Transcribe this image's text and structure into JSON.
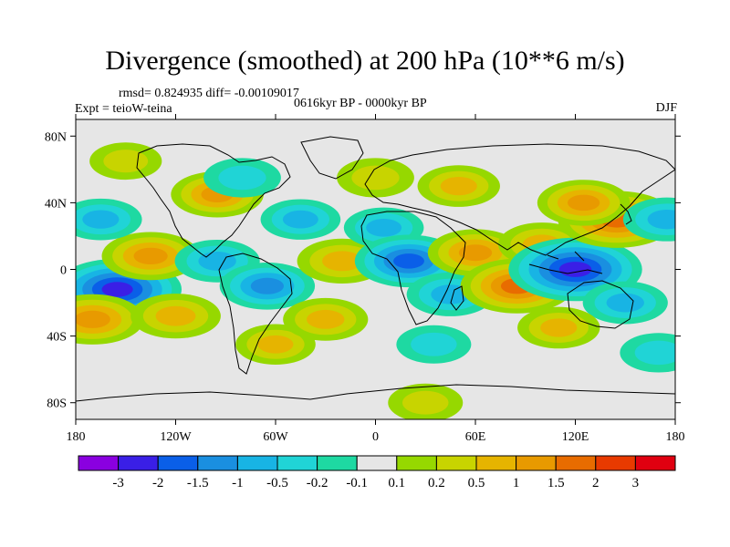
{
  "title": "Divergence (smoothed) at 200 hPa (10**6 m/s)",
  "stats": "rmsd= 0.824935 diff= -0.00109017",
  "experiment": "Expt = teioW-teina",
  "period": "0616kyr BP - 0000kyr BP",
  "season": "DJF",
  "lat_ticks": [
    "80N",
    "40N",
    "0",
    "40S",
    "80S"
  ],
  "lat_values": [
    80,
    40,
    0,
    -40,
    -80
  ],
  "lon_ticks": [
    "180",
    "120W",
    "60W",
    "0",
    "60E",
    "120E",
    "180"
  ],
  "lon_values": [
    -180,
    -120,
    -60,
    0,
    60,
    120,
    180
  ],
  "colorbar": {
    "labels": [
      "-3",
      "-2",
      "-1.5",
      "-1",
      "-0.5",
      "-0.2",
      "-0.1",
      "0.1",
      "0.2",
      "0.5",
      "1",
      "1.5",
      "2",
      "3"
    ],
    "levels": [
      -3,
      -2,
      -1.5,
      -1,
      -0.5,
      -0.2,
      -0.1,
      0.1,
      0.2,
      0.5,
      1,
      1.5,
      2,
      3
    ],
    "colors": [
      "#8a00e0",
      "#3a1fe6",
      "#0a5fe8",
      "#1a8fe0",
      "#18b4e4",
      "#20d4d6",
      "#1ed9a2",
      "#e6e6e6",
      "#96d800",
      "#c8d400",
      "#e6b400",
      "#e89a00",
      "#e86c00",
      "#e83a00",
      "#e00010"
    ]
  },
  "field_anomalies": [
    {
      "lon": -155,
      "lat": -12,
      "value": -2.6
    },
    {
      "lon": -135,
      "lat": 8,
      "value": 1.4
    },
    {
      "lon": -165,
      "lat": 30,
      "value": -0.8
    },
    {
      "lon": -170,
      "lat": -30,
      "value": 1.6
    },
    {
      "lon": -120,
      "lat": -28,
      "value": 1.1
    },
    {
      "lon": -95,
      "lat": 45,
      "value": 1.2
    },
    {
      "lon": -80,
      "lat": 55,
      "value": -0.6
    },
    {
      "lon": -95,
      "lat": 5,
      "value": -0.9
    },
    {
      "lon": -65,
      "lat": -10,
      "value": -1.3
    },
    {
      "lon": -45,
      "lat": 30,
      "value": -0.7
    },
    {
      "lon": -20,
      "lat": 5,
      "value": 1.1
    },
    {
      "lon": 5,
      "lat": 25,
      "value": -0.7
    },
    {
      "lon": 20,
      "lat": 5,
      "value": -1.8
    },
    {
      "lon": 45,
      "lat": -15,
      "value": -1.0
    },
    {
      "lon": 60,
      "lat": 10,
      "value": 1.3
    },
    {
      "lon": 85,
      "lat": -10,
      "value": 2.0
    },
    {
      "lon": 100,
      "lat": 15,
      "value": 1.0
    },
    {
      "lon": 120,
      "lat": 0,
      "value": -2.8
    },
    {
      "lon": 145,
      "lat": 30,
      "value": 2.2
    },
    {
      "lon": 125,
      "lat": 40,
      "value": 1.2
    },
    {
      "lon": 150,
      "lat": -20,
      "value": -0.9
    },
    {
      "lon": 110,
      "lat": -35,
      "value": 0.8
    },
    {
      "lon": 175,
      "lat": 30,
      "value": -1.0
    },
    {
      "lon": 50,
      "lat": 50,
      "value": 0.8
    },
    {
      "lon": 0,
      "lat": 55,
      "value": 0.6
    },
    {
      "lon": -150,
      "lat": 65,
      "value": 0.4
    },
    {
      "lon": 170,
      "lat": -50,
      "value": -0.6
    },
    {
      "lon": -60,
      "lat": -45,
      "value": 0.7
    },
    {
      "lon": -30,
      "lat": -30,
      "value": 0.9
    },
    {
      "lon": 35,
      "lat": -45,
      "value": -0.5
    },
    {
      "lon": 30,
      "lat": -80,
      "value": 0.5
    }
  ]
}
